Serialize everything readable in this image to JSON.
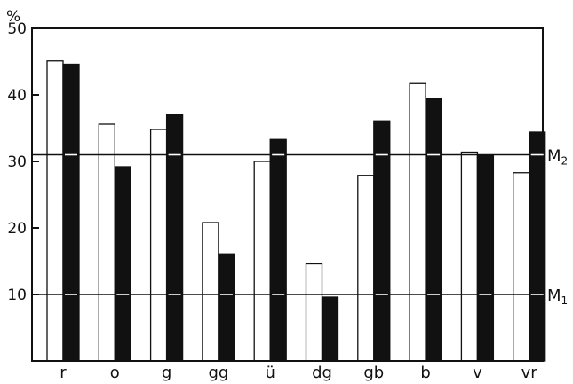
{
  "chart_data": {
    "type": "bar",
    "unit_label": "%",
    "categories": [
      "r",
      "o",
      "g",
      "gg",
      "ü",
      "dg",
      "gb",
      "b",
      "v",
      "vr"
    ],
    "series": [
      {
        "fill": "#ffffff",
        "values": [
          45.1,
          35.6,
          34.8,
          20.8,
          30.0,
          14.6,
          27.9,
          41.7,
          31.4,
          28.3
        ]
      },
      {
        "fill": "#111111",
        "values": [
          44.6,
          29.2,
          37.1,
          16.1,
          33.3,
          9.6,
          36.1,
          39.4,
          30.9,
          34.4
        ]
      }
    ],
    "ylim": [
      0,
      50
    ],
    "yticks": [
      10,
      20,
      30,
      40,
      50
    ],
    "reference_lines": [
      {
        "value": 31,
        "label": "M",
        "subscript": "2"
      },
      {
        "value": 10,
        "label": "M",
        "subscript": "1"
      }
    ],
    "grid": false
  }
}
